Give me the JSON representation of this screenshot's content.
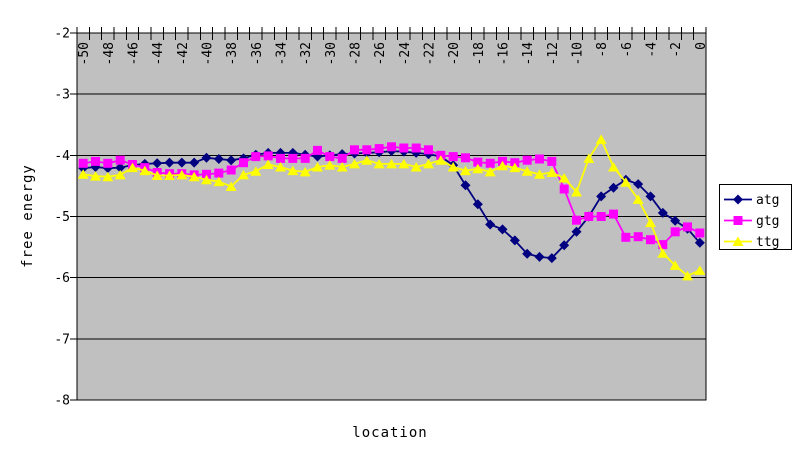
{
  "chart_data": {
    "type": "line",
    "title": "",
    "xlabel": "location",
    "ylabel": "free energy",
    "ylim": [
      -8,
      -2
    ],
    "yticks": [
      -2,
      -3,
      -4,
      -5,
      -6,
      -7,
      -8
    ],
    "xtick_label_every": 2,
    "grid": true,
    "plot_bg_color": "#C0C0C0",
    "axis_color": "#000000",
    "legend": {
      "position": "right",
      "items": [
        "atg",
        "gtg",
        "ttg"
      ]
    },
    "x": [
      -50,
      -49,
      -48,
      -47,
      -46,
      -45,
      -44,
      -43,
      -42,
      -41,
      -40,
      -39,
      -38,
      -37,
      -36,
      -35,
      -34,
      -33,
      -32,
      -31,
      -30,
      -29,
      -28,
      -27,
      -26,
      -25,
      -24,
      -23,
      -22,
      -21,
      -20,
      -19,
      -18,
      -17,
      -16,
      -15,
      -14,
      -13,
      -12,
      -11,
      -10,
      -9,
      -8,
      -7,
      -6,
      -5,
      -4,
      -3,
      -2,
      -1,
      0
    ],
    "series": [
      {
        "name": "atg",
        "color": "#000080",
        "marker": "diamond",
        "values": [
          -4.21,
          -4.19,
          -4.21,
          -4.2,
          -4.16,
          -4.14,
          -4.13,
          -4.12,
          -4.12,
          -4.12,
          -4.04,
          -4.06,
          -4.08,
          -4.05,
          -3.99,
          -3.96,
          -3.96,
          -3.96,
          -3.99,
          -4.02,
          -4.0,
          -3.98,
          -3.97,
          -3.96,
          -3.95,
          -3.93,
          -3.94,
          -3.96,
          -3.98,
          -4.02,
          -4.16,
          -4.49,
          -4.8,
          -5.13,
          -5.21,
          -5.39,
          -5.61,
          -5.66,
          -5.68,
          -5.47,
          -5.25,
          -5.0,
          -4.67,
          -4.53,
          -4.4,
          -4.47,
          -4.67,
          -4.94,
          -5.07,
          -5.2,
          -5.43
        ]
      },
      {
        "name": "gtg",
        "color": "#FF00FF",
        "marker": "square",
        "values": [
          -4.13,
          -4.1,
          -4.13,
          -4.08,
          -4.15,
          -4.2,
          -4.28,
          -4.3,
          -4.3,
          -4.32,
          -4.31,
          -4.29,
          -4.24,
          -4.12,
          -4.02,
          -4.01,
          -4.05,
          -4.05,
          -4.05,
          -3.92,
          -4.02,
          -4.05,
          -3.91,
          -3.91,
          -3.89,
          -3.86,
          -3.88,
          -3.88,
          -3.91,
          -4.0,
          -4.02,
          -4.04,
          -4.11,
          -4.13,
          -4.1,
          -4.12,
          -4.08,
          -4.06,
          -4.1,
          -4.55,
          -5.06,
          -5.0,
          -5.0,
          -4.96,
          -5.34,
          -5.33,
          -5.38,
          -5.46,
          -5.25,
          -5.17,
          -5.27
        ]
      },
      {
        "name": "ttg",
        "color": "#FFFF00",
        "marker": "triangle",
        "values": [
          -4.31,
          -4.34,
          -4.35,
          -4.32,
          -4.2,
          -4.25,
          -4.33,
          -4.33,
          -4.32,
          -4.35,
          -4.4,
          -4.43,
          -4.51,
          -4.32,
          -4.26,
          -4.15,
          -4.19,
          -4.25,
          -4.27,
          -4.19,
          -4.16,
          -4.19,
          -4.14,
          -4.08,
          -4.14,
          -4.14,
          -4.14,
          -4.19,
          -4.14,
          -4.08,
          -4.19,
          -4.25,
          -4.22,
          -4.27,
          -4.17,
          -4.2,
          -4.26,
          -4.31,
          -4.28,
          -4.37,
          -4.6,
          -4.05,
          -3.74,
          -4.19,
          -4.44,
          -4.72,
          -5.1,
          -5.6,
          -5.8,
          -5.97,
          -5.88
        ]
      }
    ]
  }
}
